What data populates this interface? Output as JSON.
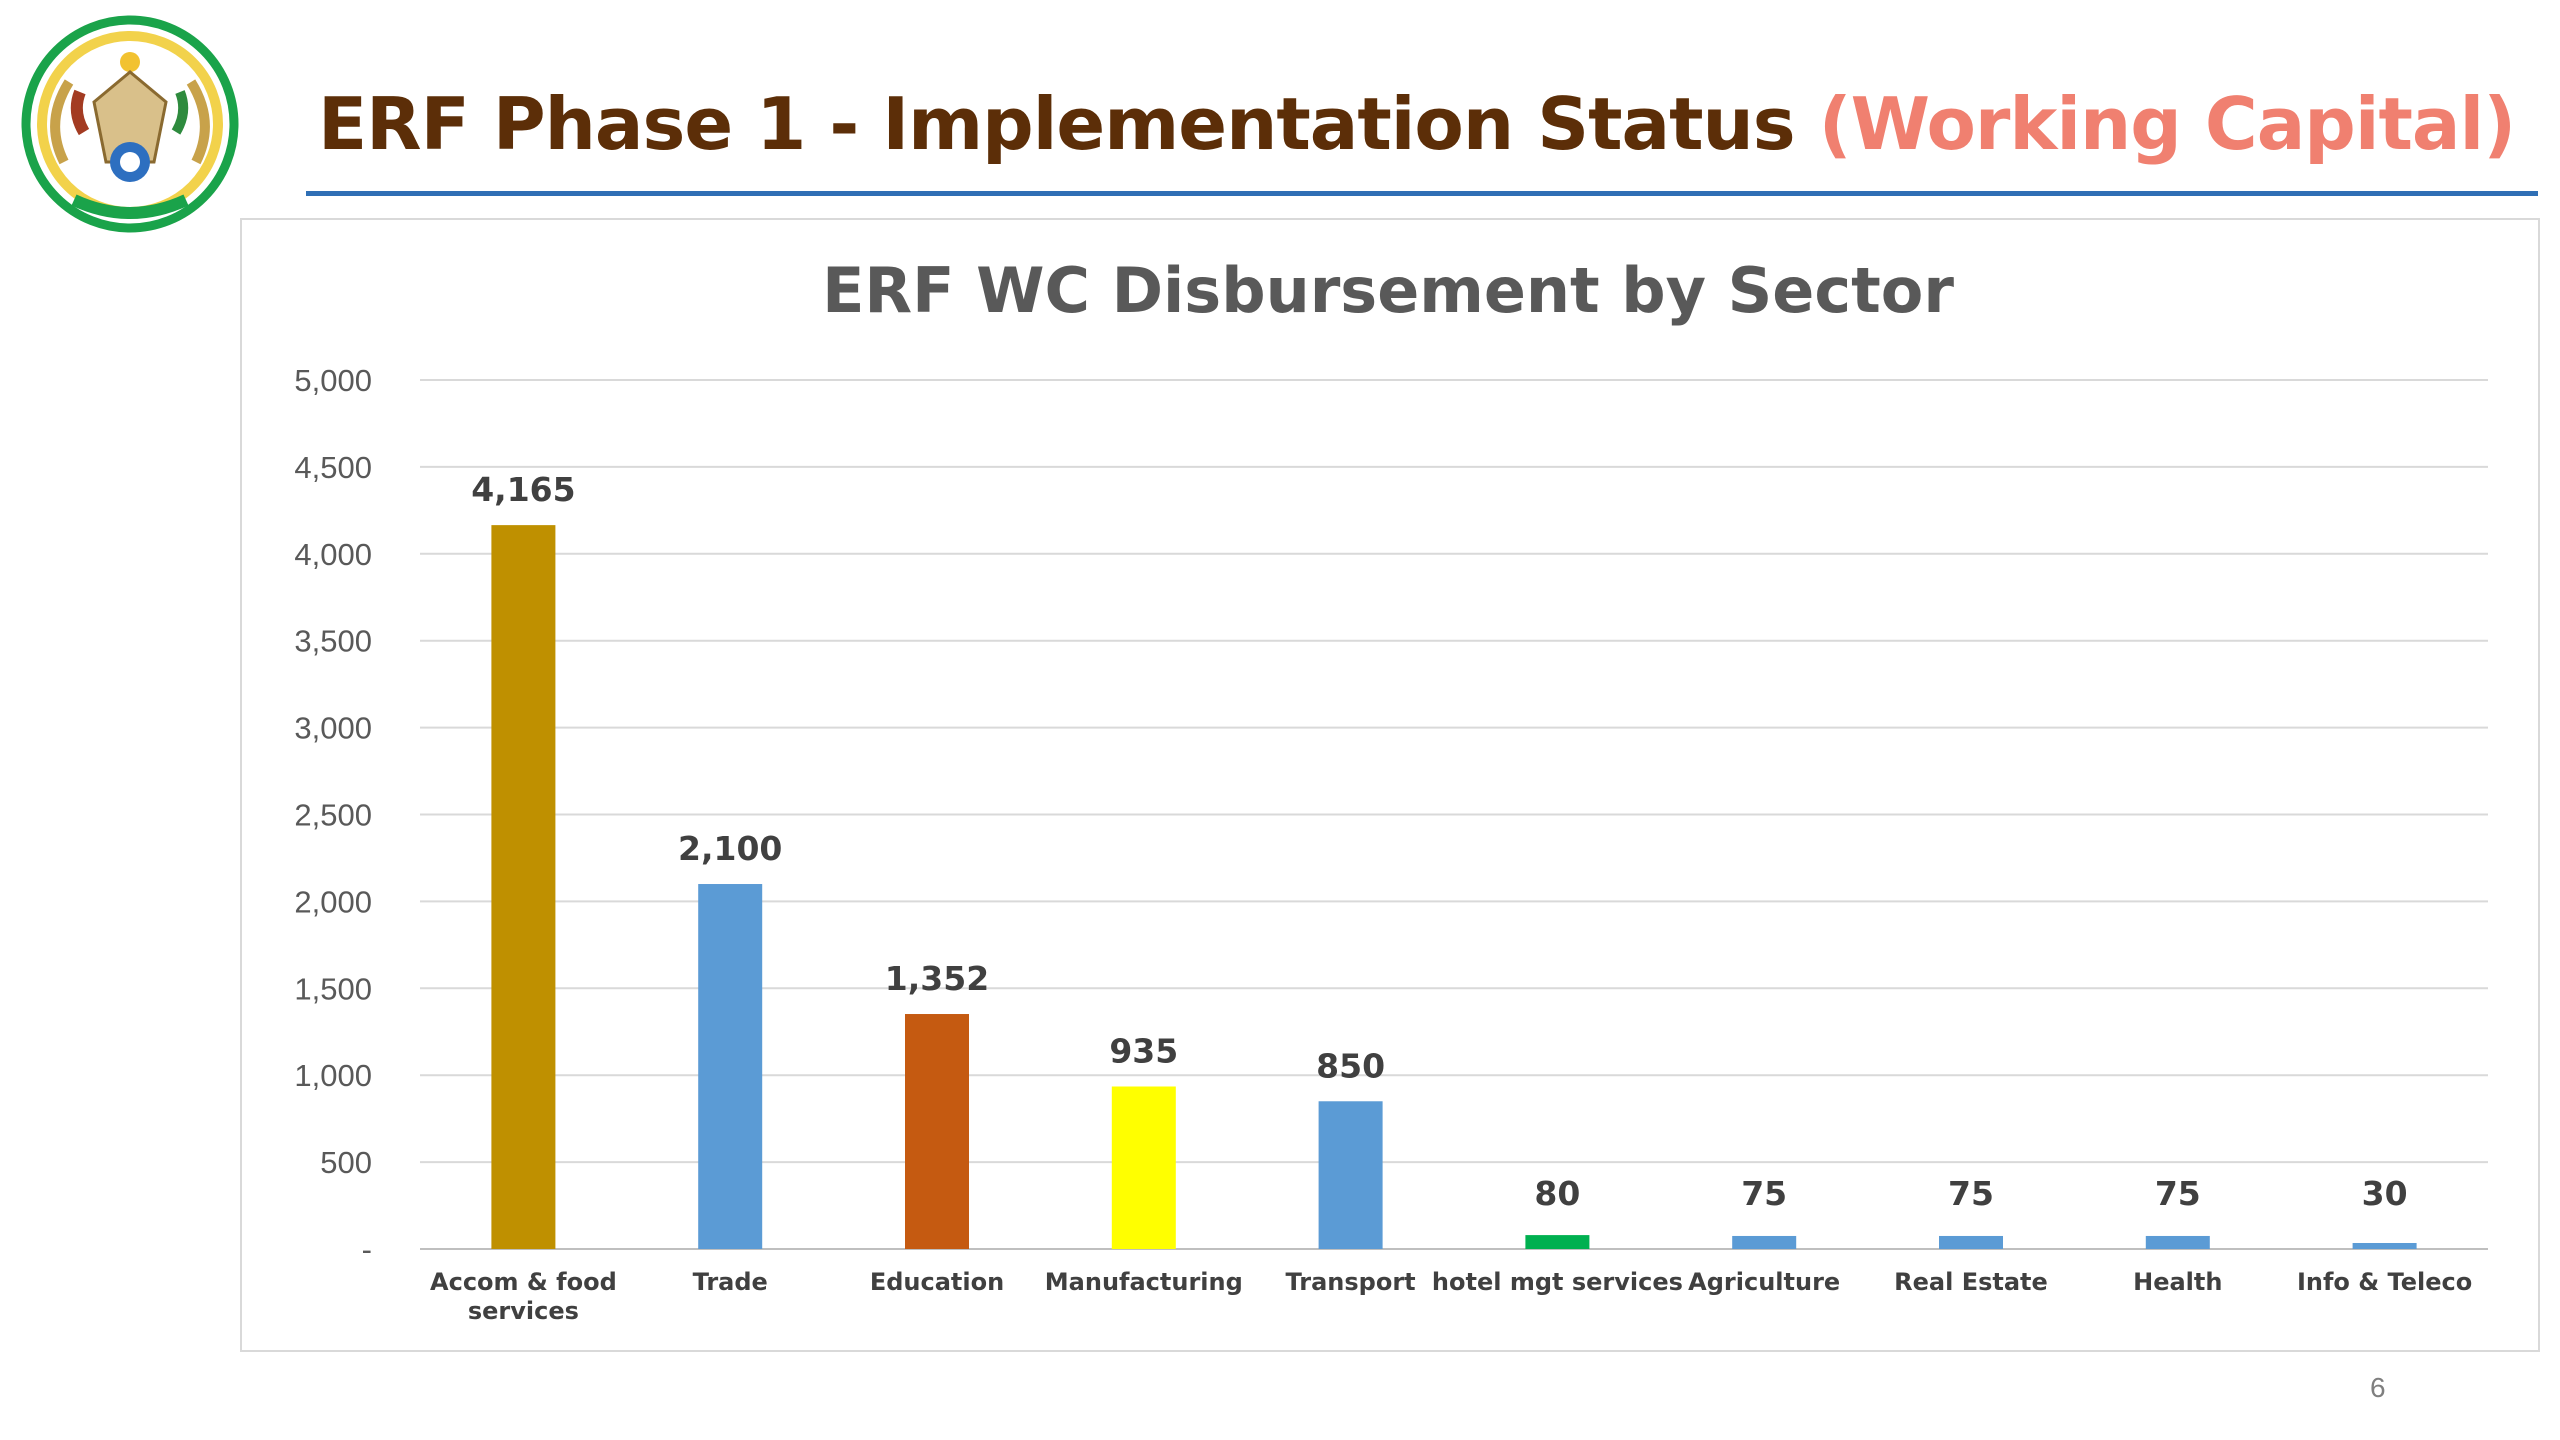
{
  "header": {
    "title": "ERF Phase 1 - Implementation Status",
    "subtitle": "(Working Capital)"
  },
  "page_number": "6",
  "logo": {
    "icon": "rwanda-coat-of-arms-icon"
  },
  "chart_data": {
    "type": "bar",
    "title": "ERF WC Disbursement by Sector",
    "xlabel": "",
    "ylabel": "",
    "ylim": [
      0,
      5000
    ],
    "yticks": [
      {
        "value": 0,
        "label": "-"
      },
      {
        "value": 500,
        "label": "500"
      },
      {
        "value": 1000,
        "label": "1,000"
      },
      {
        "value": 1500,
        "label": "1,500"
      },
      {
        "value": 2000,
        "label": "2,000"
      },
      {
        "value": 2500,
        "label": "2,500"
      },
      {
        "value": 3000,
        "label": "3,000"
      },
      {
        "value": 3500,
        "label": "3,500"
      },
      {
        "value": 4000,
        "label": "4,000"
      },
      {
        "value": 4500,
        "label": "4,500"
      },
      {
        "value": 5000,
        "label": "5,000"
      }
    ],
    "grid": true,
    "legend": "none",
    "categories": [
      [
        "Accom & food",
        "services"
      ],
      [
        "Trade"
      ],
      [
        "Education"
      ],
      [
        "Manufacturing"
      ],
      [
        "Transport"
      ],
      [
        "hotel mgt services"
      ],
      [
        "Agriculture"
      ],
      [
        "Real Estate"
      ],
      [
        "Health"
      ],
      [
        "Info & Teleco"
      ]
    ],
    "values": [
      4165,
      2100,
      1352,
      935,
      850,
      80,
      75,
      75,
      75,
      30
    ],
    "data_labels": [
      "4,165",
      "2,100",
      "1,352",
      "935",
      "850",
      "80",
      "75",
      "75",
      "75",
      "30"
    ],
    "colors": [
      "#bf9000",
      "#5b9bd5",
      "#c55a11",
      "#ffff00",
      "#5b9bd5",
      "#00b050",
      "#5b9bd5",
      "#5b9bd5",
      "#5b9bd5",
      "#5b9bd5"
    ]
  }
}
